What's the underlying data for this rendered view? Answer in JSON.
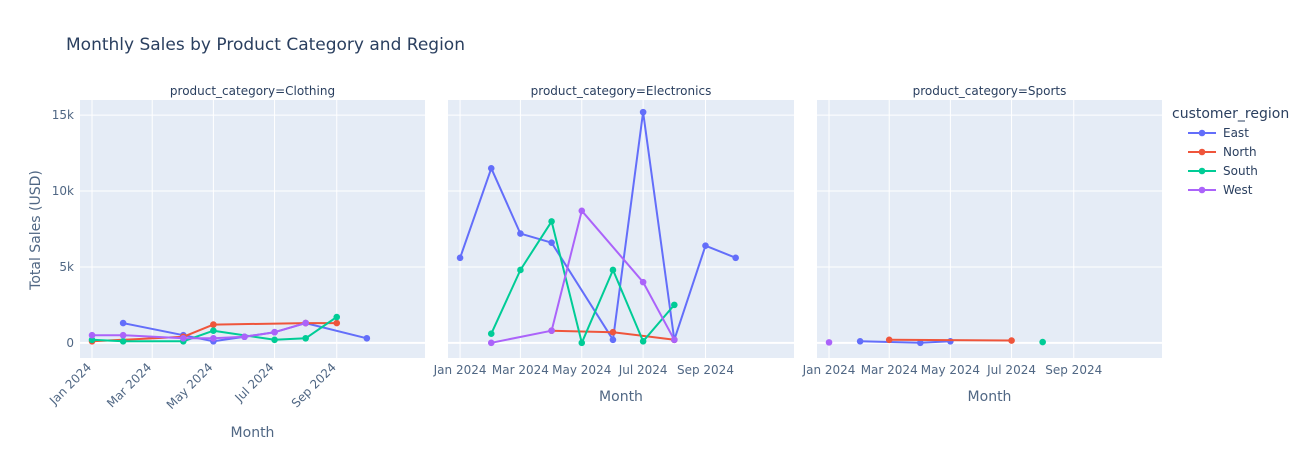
{
  "chart_data": {
    "type": "line",
    "title": "Monthly Sales by Product Category and Region",
    "ylabel": "Total Sales (USD)",
    "xlabel": "Month",
    "ylim": [
      -1000,
      16000
    ],
    "y_ticks": [
      0,
      5000,
      10000,
      15000
    ],
    "y_tick_labels": [
      "0",
      "5k",
      "10k",
      "15k"
    ],
    "xlim": [
      "2023-12-20",
      "2024-11-28"
    ],
    "x_ticks": [
      "2024-01-01",
      "2024-03-01",
      "2024-05-01",
      "2024-07-01",
      "2024-09-01"
    ],
    "x_tick_labels": [
      "Jan 2024",
      "Mar 2024",
      "May 2024",
      "Jul 2024",
      "Sep 2024"
    ],
    "legend": {
      "title": "customer_region",
      "placement": "right",
      "entries": [
        "East",
        "North",
        "South",
        "West"
      ]
    },
    "colors": {
      "East": "#636efa",
      "North": "#EF553B",
      "South": "#00cc96",
      "West": "#ab63fa"
    },
    "facets": [
      {
        "label": "product_category=Clothing",
        "series": [
          {
            "name": "East",
            "x": [
              "2024-02-01",
              "2024-04-01",
              "2024-05-01",
              "2024-06-01",
              "2024-07-01",
              "2024-08-01",
              "2024-10-01"
            ],
            "y": [
              1300,
              500,
              100,
              400,
              700,
              1300,
              300
            ]
          },
          {
            "name": "North",
            "x": [
              "2024-01-01",
              "2024-04-01",
              "2024-05-01",
              "2024-08-01",
              "2024-09-01"
            ],
            "y": [
              100,
              400,
              1200,
              1300,
              1300
            ]
          },
          {
            "name": "South",
            "x": [
              "2024-01-01",
              "2024-02-01",
              "2024-04-01",
              "2024-05-01",
              "2024-07-01",
              "2024-08-01",
              "2024-09-01"
            ],
            "y": [
              200,
              100,
              100,
              800,
              200,
              300,
              1700
            ]
          },
          {
            "name": "West",
            "x": [
              "2024-01-01",
              "2024-02-01",
              "2024-04-01",
              "2024-05-01",
              "2024-06-01",
              "2024-07-01",
              "2024-08-01"
            ],
            "y": [
              500,
              500,
              300,
              300,
              400,
              700,
              1300
            ]
          }
        ]
      },
      {
        "label": "product_category=Electronics",
        "series": [
          {
            "name": "East",
            "x": [
              "2024-01-01",
              "2024-02-01",
              "2024-03-01",
              "2024-04-01",
              "2024-06-01",
              "2024-07-01",
              "2024-08-01",
              "2024-09-01",
              "2024-10-01"
            ],
            "y": [
              5600,
              11500,
              7200,
              6600,
              200,
              15200,
              200,
              6400,
              5600
            ]
          },
          {
            "name": "North",
            "x": [
              "2024-04-01",
              "2024-06-01",
              "2024-08-01"
            ],
            "y": [
              800,
              700,
              200
            ]
          },
          {
            "name": "South",
            "x": [
              "2024-02-01",
              "2024-03-01",
              "2024-04-01",
              "2024-05-01",
              "2024-06-01",
              "2024-07-01",
              "2024-08-01"
            ],
            "y": [
              600,
              4800,
              8000,
              0,
              4800,
              100,
              2500
            ]
          },
          {
            "name": "West",
            "x": [
              "2024-02-01",
              "2024-04-01",
              "2024-05-01",
              "2024-07-01",
              "2024-08-01"
            ],
            "y": [
              0,
              800,
              8700,
              4000,
              200
            ]
          }
        ]
      },
      {
        "label": "product_category=Sports",
        "series": [
          {
            "name": "East",
            "x": [
              "2024-02-01",
              "2024-04-01",
              "2024-05-01"
            ],
            "y": [
              100,
              0,
              100
            ]
          },
          {
            "name": "North",
            "x": [
              "2024-03-01",
              "2024-07-01"
            ],
            "y": [
              200,
              150
            ]
          },
          {
            "name": "South",
            "x": [
              "2024-08-01"
            ],
            "y": [
              50
            ]
          },
          {
            "name": "West",
            "x": [
              "2024-01-01"
            ],
            "y": [
              30
            ]
          }
        ]
      }
    ]
  }
}
